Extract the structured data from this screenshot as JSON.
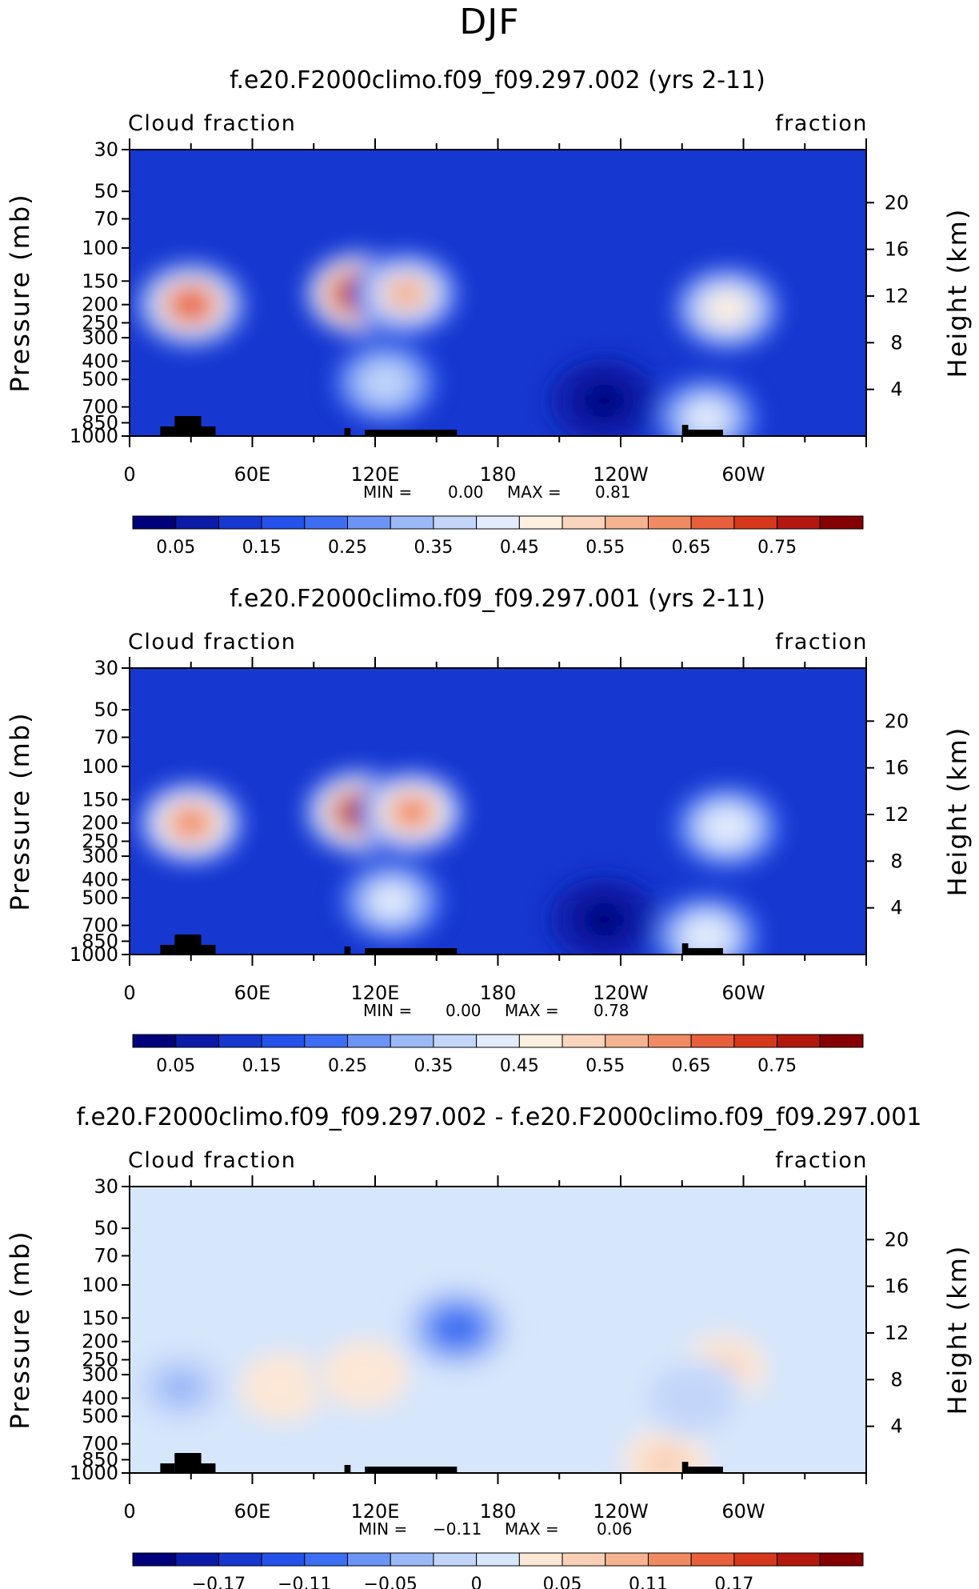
{
  "figure": {
    "super_title": "DJF",
    "corner_left": "Cloud fraction",
    "corner_right": "fraction",
    "ylabel_left": "Pressure (mb)",
    "ylabel_right": "Height (km)",
    "x_ticks": [
      "0",
      "60E",
      "120E",
      "180",
      "120W",
      "60W"
    ],
    "pressure_ticks": [
      "30",
      "50",
      "70",
      "100",
      "150",
      "200",
      "250",
      "300",
      "400",
      "500",
      "700",
      "850",
      "1000"
    ],
    "height_ticks": [
      "20",
      "16",
      "12",
      "8",
      "4"
    ]
  },
  "colors": {
    "abs_levels": [
      "#00007a",
      "#0b1ba8",
      "#1637d0",
      "#2452ea",
      "#3d6df2",
      "#6b94f5",
      "#9bb8f7",
      "#c3d6fa",
      "#e3ecfc",
      "#fdf0e0",
      "#f9d5bd",
      "#f5b391",
      "#f08a62",
      "#e8603b",
      "#d6381c",
      "#b3180e",
      "#850002"
    ],
    "diff_levels": [
      "#00007a",
      "#0b1ba8",
      "#1637d0",
      "#2452ea",
      "#3d6df2",
      "#6b94f5",
      "#9bb8f7",
      "#c3d6fa",
      "#d6e6fb",
      "#fde7d6",
      "#f9d0b6",
      "#f5b391",
      "#f08a62",
      "#e8603b",
      "#d6381c",
      "#b3180e",
      "#850002"
    ],
    "terrain": "#000000"
  },
  "chart_data": [
    {
      "type": "heatmap",
      "title": "f.e20.F2000climo.f09_f09.297.002 (yrs 2-11)",
      "variable": "Cloud fraction",
      "units": "fraction",
      "xlabel": "",
      "ylabel": "Pressure (mb)",
      "ylabel_right": "Height (km)",
      "x_ticks": [
        "0",
        "60E",
        "120E",
        "180",
        "120W",
        "60W"
      ],
      "min_label": "MIN =",
      "min_value": "0.00",
      "max_label": "MAX =",
      "max_value": "0.81",
      "colorbar_labels": [
        "0.05",
        "0.15",
        "0.25",
        "0.35",
        "0.45",
        "0.55",
        "0.65",
        "0.75"
      ],
      "colorbar_range": [
        0,
        0.85
      ],
      "features": [
        {
          "lon": 30,
          "p": 200,
          "value": 0.65
        },
        {
          "lon": 112,
          "p": 175,
          "value": 0.78
        },
        {
          "lon": 135,
          "p": 175,
          "value": 0.55
        },
        {
          "lon": 125,
          "p": 520,
          "value": 0.38
        },
        {
          "lon": 232,
          "p": 650,
          "value": 0.03
        },
        {
          "lon": 292,
          "p": 210,
          "value": 0.48
        },
        {
          "lon": 282,
          "p": 800,
          "value": 0.42
        }
      ]
    },
    {
      "type": "heatmap",
      "title": "f.e20.F2000climo.f09_f09.297.001 (yrs 2-11)",
      "variable": "Cloud fraction",
      "units": "fraction",
      "xlabel": "",
      "ylabel": "Pressure (mb)",
      "ylabel_right": "Height (km)",
      "x_ticks": [
        "0",
        "60E",
        "120E",
        "180",
        "120W",
        "60W"
      ],
      "min_label": "MIN =",
      "min_value": "0.00",
      "max_label": "MAX =",
      "max_value": "0.78",
      "colorbar_labels": [
        "0.05",
        "0.15",
        "0.25",
        "0.35",
        "0.45",
        "0.55",
        "0.65",
        "0.75"
      ],
      "colorbar_range": [
        0,
        0.85
      ],
      "features": [
        {
          "lon": 30,
          "p": 200,
          "value": 0.6
        },
        {
          "lon": 112,
          "p": 175,
          "value": 0.75
        },
        {
          "lon": 138,
          "p": 175,
          "value": 0.62
        },
        {
          "lon": 128,
          "p": 520,
          "value": 0.4
        },
        {
          "lon": 232,
          "p": 650,
          "value": 0.03
        },
        {
          "lon": 292,
          "p": 210,
          "value": 0.44
        },
        {
          "lon": 282,
          "p": 800,
          "value": 0.44
        }
      ]
    },
    {
      "type": "heatmap",
      "title": "f.e20.F2000climo.f09_f09.297.002 - f.e20.F2000climo.f09_f09.297.001",
      "variable": "Cloud fraction",
      "units": "fraction",
      "xlabel": "",
      "ylabel": "Pressure (mb)",
      "ylabel_right": "Height (km)",
      "x_ticks": [
        "0",
        "60E",
        "120E",
        "180",
        "120W",
        "60W"
      ],
      "min_label": "MIN =",
      "min_value": "−0.11",
      "max_label": "MAX =",
      "max_value": "0.06",
      "colorbar_labels": [
        "−0.17",
        "−0.11",
        "−0.05",
        "0",
        "0.05",
        "0.11",
        "0.17"
      ],
      "colorbar_range": [
        -0.23,
        0.23
      ],
      "features": [
        {
          "lon": 160,
          "p": 170,
          "value": -0.11
        },
        {
          "lon": 25,
          "p": 350,
          "value": -0.05
        },
        {
          "lon": 75,
          "p": 350,
          "value": 0.04
        },
        {
          "lon": 115,
          "p": 300,
          "value": 0.03
        },
        {
          "lon": 290,
          "p": 280,
          "value": 0.05
        },
        {
          "lon": 262,
          "p": 880,
          "value": 0.05
        },
        {
          "lon": 275,
          "p": 400,
          "value": -0.03
        }
      ]
    }
  ]
}
